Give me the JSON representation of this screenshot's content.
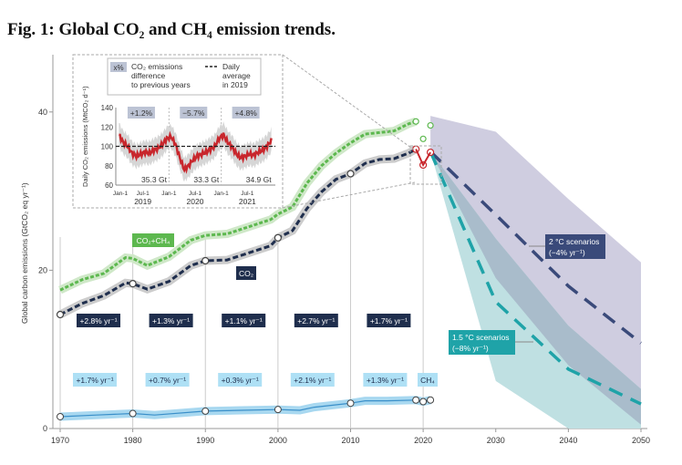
{
  "title": "Fig. 1: Global CO₂ and CH₄ emission trends.",
  "chart_data": {
    "type": "line",
    "title": "Fig. 1: Global CO₂ and CH₄ emission trends.",
    "ylabel": "Global carbon emissions (GtCO₂ eq yr⁻¹)",
    "xlim": [
      1970,
      2050
    ],
    "ylim": [
      0,
      46
    ],
    "xticks": [
      1970,
      1980,
      1990,
      2000,
      2010,
      2020,
      2030,
      2040,
      2050
    ],
    "yticks": [
      0,
      20,
      40
    ],
    "series": [
      {
        "name": "CO₂+CH₄",
        "color": "#5db84f",
        "x": [
          1970,
          1973,
          1976,
          1979,
          1980,
          1982,
          1985,
          1988,
          1990,
          1993,
          1996,
          1999,
          2000,
          2002,
          2004,
          2006,
          2008,
          2010,
          2012,
          2014,
          2016,
          2018,
          2019
        ],
        "values": [
          17.5,
          18.8,
          19.6,
          21.6,
          21.5,
          20.6,
          21.7,
          23.8,
          24.4,
          24.6,
          25.5,
          26.4,
          27.1,
          28.0,
          31.0,
          33.2,
          34.8,
          36.1,
          37.2,
          37.4,
          37.6,
          38.5,
          38.8
        ],
        "markers": {
          "2019": 38.8,
          "2020": 36.6,
          "2021": 38.3
        }
      },
      {
        "name": "CO₂",
        "color": "#1f2e4d",
        "x": [
          1970,
          1973,
          1976,
          1979,
          1980,
          1982,
          1985,
          1988,
          1990,
          1993,
          1996,
          1999,
          2000,
          2002,
          2004,
          2006,
          2008,
          2010,
          2012,
          2014,
          2016,
          2018,
          2019
        ],
        "values": [
          14.4,
          15.8,
          16.8,
          18.4,
          18.3,
          17.6,
          18.6,
          20.6,
          21.2,
          21.3,
          22.2,
          23.1,
          24.1,
          25.0,
          27.8,
          29.9,
          31.5,
          32.2,
          33.5,
          34.0,
          34.1,
          34.8,
          35.3
        ],
        "markers": {
          "1970": 14.4,
          "1980": 18.3,
          "1990": 21.2,
          "2000": 24.1,
          "2010": 32.2,
          "2019": 35.3,
          "2020": 33.3,
          "2021": 34.9
        }
      },
      {
        "name": "CH₄",
        "color": "#3a8fc9",
        "x": [
          1970,
          1975,
          1980,
          1983,
          1990,
          1995,
          2000,
          2003,
          2005,
          2010,
          2012,
          2015,
          2019,
          2020,
          2021
        ],
        "values": [
          1.5,
          1.7,
          1.9,
          1.7,
          2.2,
          2.3,
          2.4,
          2.3,
          2.7,
          3.2,
          3.5,
          3.5,
          3.6,
          3.4,
          3.6
        ]
      },
      {
        "name": "2 °C scenarios",
        "label": "2 °C scenarios",
        "rate": "(−4% yr⁻¹)",
        "color": "#3a4a7a",
        "x": [
          2021,
          2030,
          2040,
          2050
        ],
        "values": [
          35.0,
          27.0,
          18.0,
          10.8
        ],
        "band_upper": [
          39.5,
          37.5,
          29,
          21
        ],
        "band_lower": [
          35,
          19,
          8,
          0.5
        ]
      },
      {
        "name": "1.5 °C scenarios",
        "label": "1.5 °C scenarios",
        "rate": "(−8% yr⁻¹)",
        "color": "#1fa3a8",
        "x": [
          2021,
          2030,
          2040,
          2050
        ],
        "values": [
          35.0,
          16.0,
          7.5,
          3.1
        ],
        "band_upper": [
          35,
          24,
          13,
          5
        ],
        "band_lower": [
          35,
          6,
          0,
          0
        ]
      }
    ],
    "decade_rates": {
      "co2": [
        "+2.8% yr⁻¹",
        "+1.3% yr⁻¹",
        "+1.1% yr⁻¹",
        "+2.7% yr⁻¹",
        "+1.7% yr⁻¹"
      ],
      "ch4": [
        "+1.7% yr⁻¹",
        "+0.7% yr⁻¹",
        "+0.3% yr⁻¹",
        "+2.1% yr⁻¹",
        "+1.3% yr⁻¹"
      ]
    },
    "ch4_label": "CH₄",
    "co2_label": "CO₂",
    "co2ch4_label": "CO₂+CH₄",
    "inset": {
      "ylabel": "Daily CO₂ emissions (MtCO₂ d⁻¹)",
      "yticks": [
        60,
        80,
        100,
        120,
        140
      ],
      "xticks": [
        "Jan-1",
        "Jul-1",
        "Jan-1",
        "Jul-1",
        "Jan-1",
        "Jul-1"
      ],
      "years": [
        "2019",
        "2020",
        "2021"
      ],
      "legend_box": "x%",
      "legend_diff": "CO₂ emissions difference to previous years",
      "legend_avg": "Daily average in 2019",
      "changes": [
        "+1.2%",
        "−5.7%",
        "+4.8%"
      ],
      "totals": [
        "35.3 Gt",
        "33.3 Gt",
        "34.9 Gt"
      ],
      "baseline": 100,
      "monthly": [
        112,
        104,
        100,
        93,
        90,
        92,
        94,
        93,
        96,
        98,
        102,
        108,
        110,
        102,
        88,
        76,
        80,
        86,
        90,
        92,
        94,
        97,
        100,
        108,
        112,
        104,
        99,
        92,
        88,
        90,
        92,
        91,
        94,
        96,
        100,
        106
      ]
    }
  }
}
